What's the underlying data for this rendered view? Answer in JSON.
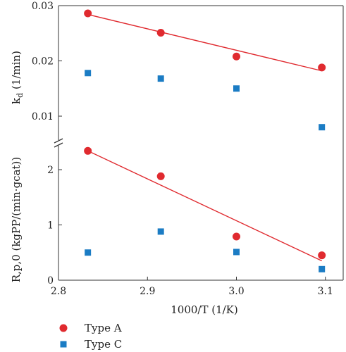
{
  "chart_data": [
    {
      "type": "scatter",
      "panel": "upper",
      "ylabel": {
        "main": "k",
        "sub": "d",
        "unit": " (1/min)"
      },
      "ylim": [
        0.0,
        0.03
      ],
      "yticks": [
        "0.01",
        "0.02",
        "0.03"
      ],
      "yticks_values": [
        0.01,
        0.02,
        0.03
      ],
      "xlim": [
        2.8,
        3.12
      ],
      "grid": false,
      "series": [
        {
          "name": "Type A",
          "color": "#e02a2f",
          "marker": "circle",
          "x": [
            2.833,
            2.915,
            3.0,
            3.096
          ],
          "y": [
            0.0286,
            0.0251,
            0.0208,
            0.0188
          ],
          "fit": {
            "x": [
              2.833,
              3.096
            ],
            "y": [
              0.0284,
              0.0182
            ]
          }
        },
        {
          "name": "Type C",
          "color": "#1b7cc4",
          "marker": "square",
          "x": [
            2.833,
            2.915,
            3.0,
            3.096
          ],
          "y": [
            0.0178,
            0.0168,
            0.015,
            0.008
          ]
        }
      ]
    },
    {
      "type": "scatter",
      "panel": "lower",
      "ylabel": "R,p,0 (kgPP/(min·gcat))",
      "ylim": [
        0,
        2.2
      ],
      "yticks": [
        "0",
        "1",
        "2"
      ],
      "yticks_values": [
        0,
        1,
        2
      ],
      "xlim": [
        2.8,
        3.12
      ],
      "xlabel": "1000/T (1/K)",
      "xticks": [
        "2.8",
        "2.9",
        "3.0",
        "3.1"
      ],
      "xticks_values": [
        2.8,
        2.9,
        3.0,
        3.1
      ],
      "grid": false,
      "series": [
        {
          "name": "Type A",
          "color": "#e02a2f",
          "marker": "circle",
          "x": [
            2.833,
            2.915,
            3.0,
            3.096
          ],
          "y": [
            2.34,
            1.88,
            0.79,
            0.45
          ],
          "fit": {
            "x": [
              2.833,
              3.096
            ],
            "y": [
              2.34,
              0.35
            ]
          }
        },
        {
          "name": "Type C",
          "color": "#1b7cc4",
          "marker": "square",
          "x": [
            2.833,
            2.915,
            3.0,
            3.096
          ],
          "y": [
            0.5,
            0.88,
            0.51,
            0.2
          ]
        }
      ]
    }
  ],
  "legend": {
    "position": "bottom-left",
    "items": [
      {
        "label": "Type A",
        "color": "#e02a2f",
        "marker": "circle"
      },
      {
        "label": "Type C",
        "color": "#1b7cc4",
        "marker": "square"
      }
    ]
  },
  "axis_break_symbol": "//"
}
